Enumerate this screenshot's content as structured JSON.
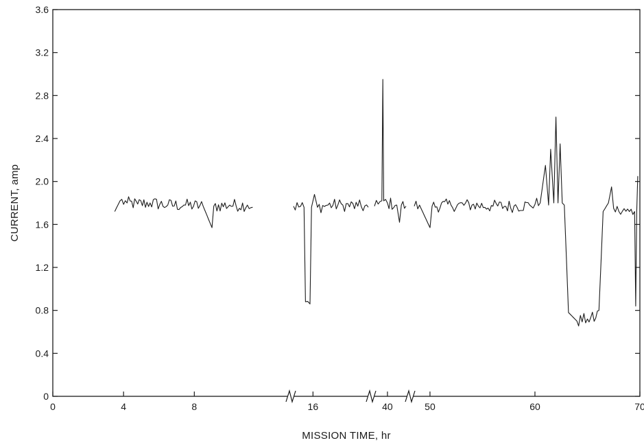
{
  "chart_data": {
    "type": "line",
    "xlabel": "MISSION TIME, hr",
    "ylabel": "CURRENT, amp",
    "ylim": [
      0,
      3.6
    ],
    "y_ticks": [
      "0",
      "0.4",
      "0.8",
      "1.2",
      "1.6",
      "2.0",
      "2.4",
      "2.8",
      "3.2",
      "3.6"
    ],
    "x_tick_labels": [
      "0",
      "4",
      "8",
      "16",
      "40",
      "50",
      "60",
      "70"
    ],
    "x_axis_breaks": true,
    "grid": false,
    "legend": "none",
    "series": [
      {
        "segment": 1,
        "points": [
          [
            3.5,
            1.72
          ],
          [
            3.8,
            1.82
          ],
          [
            4.2,
            1.8
          ],
          [
            4.8,
            1.79
          ],
          [
            5.5,
            1.8
          ],
          [
            6.5,
            1.78
          ],
          [
            7.5,
            1.78
          ],
          [
            8.5,
            1.77
          ],
          [
            9.0,
            1.57
          ],
          [
            9.1,
            1.77
          ],
          [
            10.0,
            1.78
          ],
          [
            11.0,
            1.78
          ],
          [
            11.3,
            1.76
          ]
        ]
      },
      {
        "segment": 2,
        "points": [
          [
            14.7,
            1.77
          ],
          [
            15.4,
            1.76
          ],
          [
            15.5,
            0.88
          ],
          [
            15.8,
            0.86
          ],
          [
            15.9,
            1.76
          ],
          [
            16.1,
            1.88
          ],
          [
            16.3,
            1.76
          ],
          [
            17.0,
            1.78
          ],
          [
            18.0,
            1.78
          ],
          [
            19.0,
            1.77
          ],
          [
            19.7,
            1.76
          ]
        ]
      },
      {
        "segment": 3,
        "points": [
          [
            38.6,
            1.77
          ],
          [
            39.0,
            1.79
          ],
          [
            39.4,
            1.82
          ],
          [
            39.5,
            2.95
          ],
          [
            39.6,
            1.82
          ],
          [
            40.0,
            1.8
          ],
          [
            41.0,
            1.78
          ],
          [
            41.3,
            1.62
          ],
          [
            41.5,
            1.78
          ],
          [
            42.0,
            1.77
          ]
        ]
      },
      {
        "segment": 4,
        "points": [
          [
            48.5,
            1.77
          ],
          [
            49.0,
            1.78
          ],
          [
            50.0,
            1.57
          ],
          [
            50.2,
            1.77
          ],
          [
            52.0,
            1.78
          ],
          [
            54.0,
            1.78
          ],
          [
            56.0,
            1.77
          ],
          [
            58.0,
            1.77
          ],
          [
            59.5,
            1.78
          ],
          [
            60.5,
            1.8
          ],
          [
            61.0,
            2.15
          ],
          [
            61.3,
            1.78
          ],
          [
            61.5,
            2.3
          ],
          [
            61.8,
            1.8
          ],
          [
            62.0,
            2.6
          ],
          [
            62.2,
            1.8
          ],
          [
            62.4,
            2.35
          ],
          [
            62.6,
            1.8
          ],
          [
            62.8,
            1.78
          ],
          [
            63.2,
            0.78
          ],
          [
            64.0,
            0.7
          ],
          [
            65.0,
            0.72
          ],
          [
            65.8,
            0.73
          ],
          [
            66.1,
            0.8
          ],
          [
            66.5,
            1.72
          ],
          [
            67.0,
            1.8
          ],
          [
            67.3,
            1.95
          ],
          [
            67.5,
            1.75
          ],
          [
            68.0,
            1.72
          ],
          [
            69.0,
            1.72
          ],
          [
            69.5,
            1.72
          ],
          [
            69.6,
            0.84
          ],
          [
            69.7,
            1.72
          ],
          [
            69.8,
            2.05
          ]
        ]
      }
    ]
  }
}
